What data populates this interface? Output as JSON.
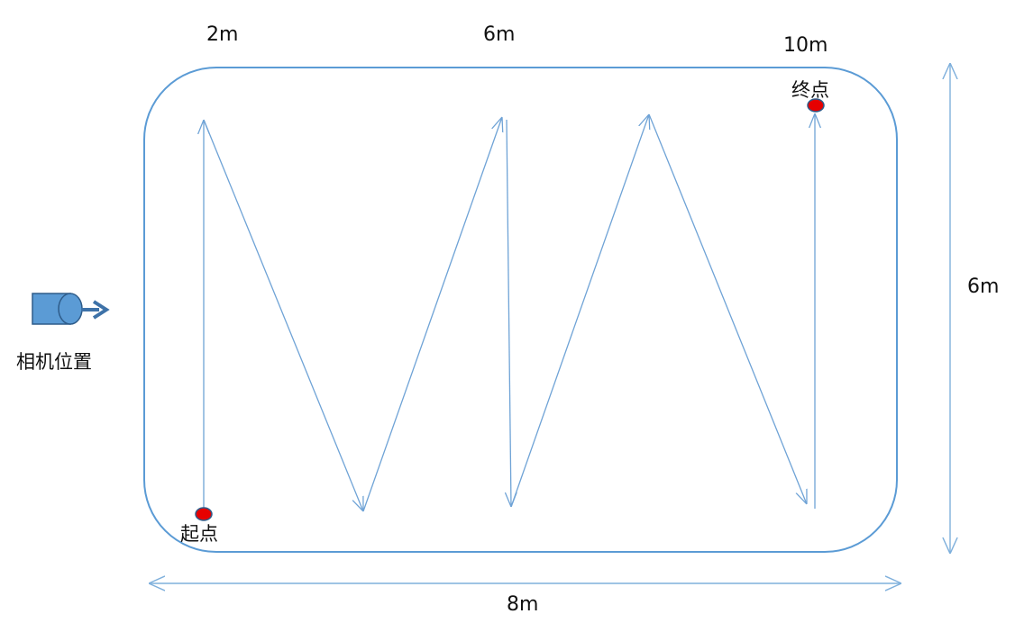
{
  "labels": {
    "top_2m": "2m",
    "top_6m": "6m",
    "top_10m": "10m",
    "height": "6m",
    "width": "8m",
    "camera": "相机位置",
    "start": "起点",
    "end": "终点"
  },
  "colors": {
    "boundary": "#5b9bd5",
    "path": "#6fa3d6",
    "dimension": "#7fb0dc",
    "marker_fill": "#e60000",
    "marker_stroke": "#2e5c8a",
    "camera_body": "#5b9bd5",
    "camera_stroke": "#2e5c8a"
  },
  "icons": {
    "camera": "camera-icon",
    "start_marker": "start-point-marker",
    "end_marker": "end-point-marker"
  }
}
